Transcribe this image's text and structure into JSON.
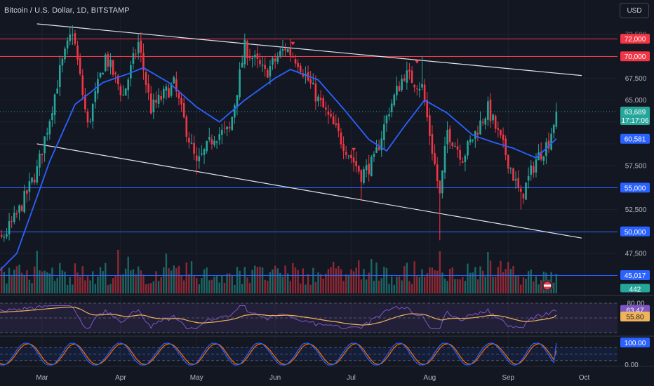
{
  "symbol_title": "Bitcoin / U.S. Dollar, 1D, BITSTAMP",
  "currency_label": "USD",
  "countdown": "17:17:06",
  "colors": {
    "up": "#26a69a",
    "down": "#f23645",
    "ma_line": "#2962ff",
    "level_red": "#f23645",
    "level_blue": "#2962ff",
    "trend": "#e0e3eb",
    "rsi": "#7e57c2",
    "rsi_ma": "#f0b35b",
    "stoch_k": "#2962ff",
    "stoch_d": "#ff6d00"
  },
  "chart_data": {
    "type": "candlestick",
    "symbol": "BTCUSD",
    "timeframe": "1D",
    "y_axis": {
      "range": [
        45017,
        73500
      ],
      "ticks": [
        72500,
        70000,
        67500,
        65000,
        62500,
        60000,
        57500,
        55000,
        52500,
        50000,
        47500,
        45000
      ]
    },
    "x_axis": {
      "labels": [
        {
          "text": "Mar",
          "date": "2024-03-01"
        },
        {
          "text": "Apr",
          "date": "2024-04-01"
        },
        {
          "text": "May",
          "date": "2024-05-01"
        },
        {
          "text": "Jun",
          "date": "2024-06-01"
        },
        {
          "text": "Jul",
          "date": "2024-07-01"
        },
        {
          "text": "Aug",
          "date": "2024-08-01"
        },
        {
          "text": "Sep",
          "date": "2024-09-01"
        },
        {
          "text": "Oct",
          "date": "2024-10-01"
        }
      ]
    },
    "close_anchors": [
      [
        "2024-02-01",
        43000
      ],
      [
        "2024-02-12",
        48200
      ],
      [
        "2024-02-20",
        51800
      ],
      [
        "2024-02-28",
        57000
      ],
      [
        "2024-03-04",
        63000
      ],
      [
        "2024-03-08",
        68300
      ],
      [
        "2024-03-13",
        73000
      ],
      [
        "2024-03-19",
        62000
      ],
      [
        "2024-03-26",
        70000
      ],
      [
        "2024-04-02",
        65500
      ],
      [
        "2024-04-08",
        71500
      ],
      [
        "2024-04-13",
        64000
      ],
      [
        "2024-04-22",
        66800
      ],
      [
        "2024-05-01",
        57500
      ],
      [
        "2024-05-08",
        61000
      ],
      [
        "2024-05-14",
        61500
      ],
      [
        "2024-05-20",
        71000
      ],
      [
        "2024-05-28",
        68000
      ],
      [
        "2024-06-05",
        71000
      ],
      [
        "2024-06-10",
        69500
      ],
      [
        "2024-06-18",
        65000
      ],
      [
        "2024-06-25",
        61500
      ],
      [
        "2024-07-05",
        56500
      ],
      [
        "2024-07-10",
        58000
      ],
      [
        "2024-07-16",
        64000
      ],
      [
        "2024-07-22",
        68000
      ],
      [
        "2024-07-29",
        66500
      ],
      [
        "2024-08-05",
        54000
      ],
      [
        "2024-08-08",
        61500
      ],
      [
        "2024-08-14",
        58500
      ],
      [
        "2024-08-24",
        64000
      ],
      [
        "2024-08-31",
        58900
      ],
      [
        "2024-09-06",
        53800
      ],
      [
        "2024-09-12",
        58200
      ],
      [
        "2024-09-17",
        60300
      ],
      [
        "2024-09-20",
        63689
      ]
    ],
    "extremes": [
      {
        "date": "2024-03-14",
        "high": 73000
      },
      {
        "date": "2024-04-08",
        "high": 72500
      },
      {
        "date": "2024-05-21",
        "high": 71900
      },
      {
        "date": "2024-06-07",
        "high": 71950
      },
      {
        "date": "2024-05-01",
        "low": 56500
      },
      {
        "date": "2024-07-05",
        "low": 53500
      },
      {
        "date": "2024-08-05",
        "low": 49000
      },
      {
        "date": "2024-07-29",
        "high": 70000
      },
      {
        "date": "2024-09-06",
        "low": 52500
      }
    ],
    "last_date": "2024-09-20",
    "last_close": 63689,
    "moving_average": {
      "value": 60581,
      "anchors": [
        [
          "2024-02-01",
          42000
        ],
        [
          "2024-02-20",
          47500
        ],
        [
          "2024-03-04",
          58000
        ],
        [
          "2024-03-14",
          64500
        ],
        [
          "2024-03-25",
          67000
        ],
        [
          "2024-04-04",
          68000
        ],
        [
          "2024-04-10",
          68700
        ],
        [
          "2024-04-20",
          67000
        ],
        [
          "2024-05-01",
          64200
        ],
        [
          "2024-05-10",
          62500
        ],
        [
          "2024-05-20",
          65000
        ],
        [
          "2024-06-01",
          67500
        ],
        [
          "2024-06-07",
          68500
        ],
        [
          "2024-06-18",
          67300
        ],
        [
          "2024-06-28",
          64000
        ],
        [
          "2024-07-08",
          60500
        ],
        [
          "2024-07-15",
          59200
        ],
        [
          "2024-07-22",
          62000
        ],
        [
          "2024-07-30",
          65000
        ],
        [
          "2024-08-08",
          63500
        ],
        [
          "2024-08-18",
          61000
        ],
        [
          "2024-08-26",
          60200
        ],
        [
          "2024-09-03",
          59500
        ],
        [
          "2024-09-12",
          58400
        ],
        [
          "2024-09-20",
          60581
        ]
      ]
    },
    "trend_lines": [
      {
        "from": [
          "2024-02-28",
          73700
        ],
        "to": [
          "2024-09-30",
          67800
        ]
      },
      {
        "from": [
          "2024-02-28",
          60000
        ],
        "to": [
          "2024-09-30",
          49250
        ]
      }
    ],
    "horizontal_levels": [
      {
        "value": 72000,
        "label": "72,000",
        "color": "red"
      },
      {
        "value": 70000,
        "label": "70,000",
        "color": "red"
      },
      {
        "value": 55000,
        "label": "55,000",
        "color": "blue"
      },
      {
        "value": 50000,
        "label": "50,000",
        "color": "blue"
      },
      {
        "value": 45017,
        "label": "45,017",
        "color": "blue"
      }
    ],
    "markers": [
      {
        "date": "2024-06-08",
        "price": 71400
      },
      {
        "date": "2024-07-02",
        "price": 59300
      },
      {
        "date": "2024-07-27",
        "price": 69300
      }
    ],
    "price_labels": {
      "last_price": "63,689",
      "ma_value": "60,581",
      "volume": "442"
    },
    "volume": {
      "last": 442,
      "range": [
        0,
        1000
      ]
    },
    "rsi": {
      "value": 63.47,
      "ma_value": 55.8,
      "upper": 80,
      "lower": 20,
      "visible_ticks": [
        "80.00"
      ],
      "value_label": "63.47",
      "ma_label": "55.80"
    },
    "stochastic": {
      "value": 100.0,
      "upper": 80,
      "lower": 20,
      "ticks": [
        "100.00",
        "0.00"
      ],
      "value_label": "100.00"
    }
  }
}
